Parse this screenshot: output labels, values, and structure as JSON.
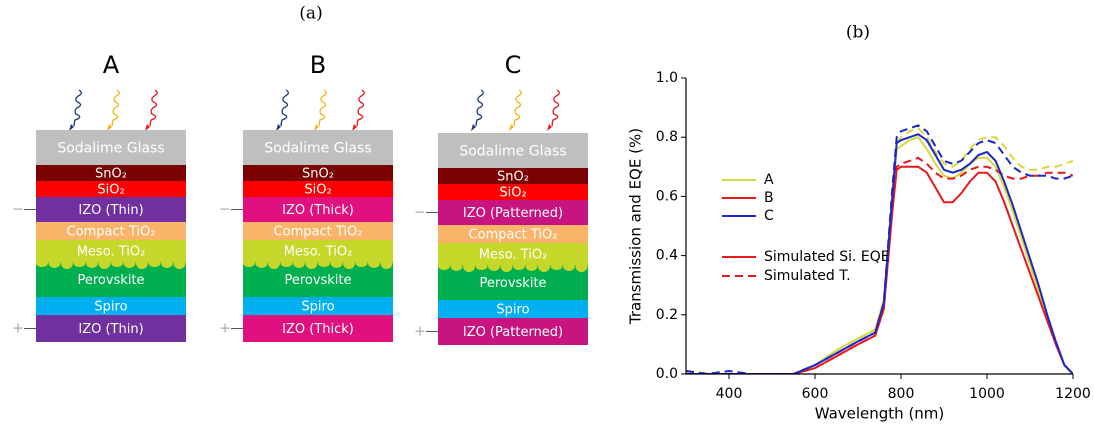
{
  "panel_a": {
    "label": "(a)",
    "terminals": {
      "negative": "−",
      "positive": "+"
    },
    "stacks": [
      {
        "title": "A",
        "layers": [
          "Sodalime Glass",
          "SnO₂",
          "SiO₂",
          "IZO (Thin)",
          "Compact TiO₂",
          "Meso. TiO₂",
          "Perovskite",
          "Spiro",
          "IZO (Thin)"
        ]
      },
      {
        "title": "B",
        "layers": [
          "Sodalime Glass",
          "SnO₂",
          "SiO₂",
          "IZO (Thick)",
          "Compact TiO₂",
          "Meso. TiO₂",
          "Perovskite",
          "Spiro",
          "IZO (Thick)"
        ]
      },
      {
        "title": "C",
        "layers": [
          "Sodalime Glass",
          "SnO₂",
          "SiO₂",
          "IZO (Patterned)",
          "Compact TiO₂",
          "Meso. TiO₂",
          "Perovskite",
          "Spiro",
          "IZO (Patterned)"
        ]
      }
    ]
  },
  "chart_data": {
    "type": "line",
    "label": "(b)",
    "x_label": "Wavelength (nm)",
    "y_label": "Transmission and EQE (%)",
    "xlim": [
      300,
      1200
    ],
    "ylim": [
      0,
      1.0
    ],
    "xticks": [
      400,
      600,
      800,
      1000,
      1200
    ],
    "yticks": [
      {
        "value": 0,
        "label": "0.0"
      },
      0.2,
      0.4,
      0.6,
      0.8,
      {
        "value": 1.0,
        "label": "1.0"
      }
    ],
    "x": [
      300,
      350,
      400,
      450,
      500,
      550,
      600,
      650,
      700,
      740,
      760,
      780,
      790,
      800,
      820,
      840,
      860,
      880,
      900,
      920,
      940,
      960,
      980,
      1000,
      1020,
      1040,
      1060,
      1080,
      1100,
      1120,
      1140,
      1160,
      1180,
      1200
    ],
    "series": [
      {
        "name": "A",
        "color": "#d8d83a",
        "values": [
          0,
          0,
          0,
          0,
          0,
          0,
          0.03,
          0.08,
          0.12,
          0.15,
          0.25,
          0.6,
          0.76,
          0.77,
          0.79,
          0.8,
          0.76,
          0.71,
          0.67,
          0.66,
          0.68,
          0.71,
          0.73,
          0.73,
          0.7,
          0.63,
          0.55,
          0.46,
          0.37,
          0.28,
          0.19,
          0.1,
          0.03,
          0
        ],
        "transmission": [
          0.01,
          0,
          0,
          0,
          0,
          0,
          0.03,
          0.08,
          0.12,
          0.15,
          0.25,
          0.62,
          0.78,
          0.8,
          0.82,
          0.83,
          0.8,
          0.75,
          0.71,
          0.7,
          0.72,
          0.76,
          0.79,
          0.8,
          0.8,
          0.77,
          0.73,
          0.7,
          0.69,
          0.69,
          0.7,
          0.7,
          0.71,
          0.72
        ]
      },
      {
        "name": "B",
        "color": "#e8191c",
        "values": [
          0,
          0,
          0,
          0,
          0,
          0,
          0.02,
          0.06,
          0.1,
          0.13,
          0.22,
          0.55,
          0.69,
          0.7,
          0.7,
          0.7,
          0.68,
          0.63,
          0.58,
          0.58,
          0.61,
          0.65,
          0.68,
          0.68,
          0.65,
          0.58,
          0.5,
          0.42,
          0.34,
          0.26,
          0.18,
          0.1,
          0.03,
          0
        ],
        "transmission": [
          0.01,
          0,
          0,
          0,
          0,
          0,
          0.02,
          0.06,
          0.1,
          0.13,
          0.22,
          0.57,
          0.7,
          0.71,
          0.72,
          0.73,
          0.71,
          0.68,
          0.66,
          0.66,
          0.67,
          0.69,
          0.7,
          0.7,
          0.69,
          0.67,
          0.66,
          0.66,
          0.67,
          0.67,
          0.68,
          0.68,
          0.68,
          0.67
        ]
      },
      {
        "name": "C",
        "color": "#1a28c8",
        "values": [
          0,
          0,
          0,
          0,
          0,
          0,
          0.03,
          0.07,
          0.11,
          0.14,
          0.24,
          0.6,
          0.78,
          0.79,
          0.8,
          0.81,
          0.79,
          0.74,
          0.69,
          0.68,
          0.69,
          0.71,
          0.74,
          0.75,
          0.72,
          0.65,
          0.57,
          0.48,
          0.39,
          0.3,
          0.2,
          0.11,
          0.03,
          0
        ],
        "transmission": [
          0.01,
          0,
          0.01,
          0,
          0,
          0,
          0.03,
          0.07,
          0.11,
          0.14,
          0.24,
          0.63,
          0.8,
          0.82,
          0.83,
          0.84,
          0.82,
          0.77,
          0.72,
          0.71,
          0.72,
          0.75,
          0.78,
          0.79,
          0.78,
          0.74,
          0.7,
          0.68,
          0.67,
          0.67,
          0.67,
          0.66,
          0.66,
          0.67
        ]
      }
    ],
    "style_legend": {
      "color": "#e8191c",
      "entries": [
        {
          "label": "Simulated Si. EQE",
          "dashed": false
        },
        {
          "label": "Simulated T.",
          "dashed": true
        }
      ]
    }
  }
}
